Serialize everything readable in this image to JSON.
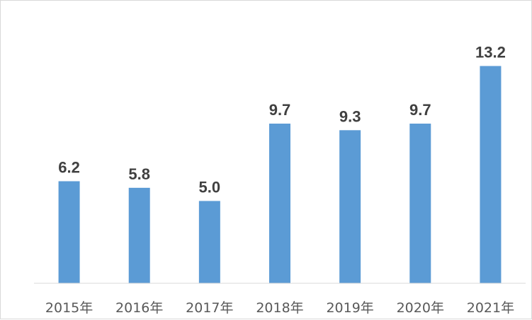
{
  "chart_data": {
    "type": "bar",
    "categories": [
      "2015年",
      "2016年",
      "2017年",
      "2018年",
      "2019年",
      "2020年",
      "2021年"
    ],
    "values": [
      6.2,
      5.8,
      5.0,
      9.7,
      9.3,
      9.7,
      13.2
    ],
    "value_labels": [
      "6.2",
      "5.8",
      "5.0",
      "9.7",
      "9.3",
      "9.7",
      "13.2"
    ],
    "ylim": [
      0,
      14
    ],
    "grid": false,
    "legend": "none",
    "bar_color": "#5b9bd5"
  }
}
